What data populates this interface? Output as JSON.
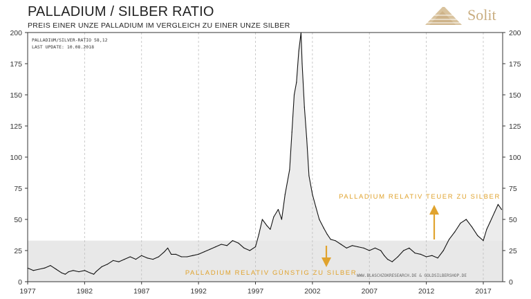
{
  "header": {
    "title": "PALLADIUM / SILBER RATIO",
    "subtitle": "PREIS EINER UNZE PALLADIUM IM VERGLEICH ZU EINER UNZE SILBER",
    "logo_text": "Solit"
  },
  "info": {
    "ratio_line": "PALLADIUM/SILVER-RATIO 58,12",
    "update_line": "LAST UPDATE: 10.08.2018",
    "source": "WWW.BLASCHZOKRESEARCH.DE  &  GOLDSILBERSHOP.DE"
  },
  "annotations": {
    "expensive": "PALLADIUM RELATIV TEUER ZU SILBER",
    "cheap": "PALLADIUM RELATIV GÜNSTIG ZU SILBER"
  },
  "colors": {
    "accent": "#e0a32e",
    "band": "#e8e8e8",
    "line": "#111111"
  },
  "chart_data": {
    "type": "line",
    "title": "PALLADIUM / SILBER RATIO",
    "subtitle": "PREIS EINER UNZE PALLADIUM IM VERGLEICH ZU EINER UNZE SILBER",
    "xlabel": "",
    "ylabel": "",
    "xlim": [
      1977,
      2018.7
    ],
    "ylim": [
      0,
      200
    ],
    "x_ticks": [
      "1977",
      "1982",
      "1987",
      "1992",
      "1997",
      "2002",
      "2007",
      "2012",
      "2017"
    ],
    "y_ticks": [
      "0",
      "25",
      "50",
      "75",
      "100",
      "125",
      "150",
      "175",
      "200"
    ],
    "grid": "vertical dashed",
    "band": {
      "y_max": 33,
      "x_from": 1977,
      "x_to": 2018.7
    },
    "series": [
      {
        "x": [
          1977.0,
          1977.5,
          1978.0,
          1978.5,
          1979.0,
          1979.5,
          1980.0,
          1980.3,
          1980.6,
          1981.0,
          1981.5,
          1982.0,
          1982.5,
          1982.8,
          1983.0,
          1983.5,
          1984.0,
          1984.5,
          1985.0,
          1985.5,
          1986.0,
          1986.5,
          1987.0,
          1987.5,
          1988.0,
          1988.5,
          1989.0,
          1989.3,
          1989.6,
          1990.0,
          1990.5,
          1991.0,
          1991.5,
          1992.0,
          1992.5,
          1993.0,
          1993.5,
          1994.0,
          1994.5,
          1995.0,
          1995.5,
          1996.0,
          1996.5,
          1997.0,
          1997.3,
          1997.6,
          1998.0,
          1998.3,
          1998.6,
          1999.0,
          1999.3,
          1999.6,
          2000.0,
          2000.2,
          2000.4,
          2000.6,
          2000.8,
          2001.0,
          2001.1,
          2001.3,
          2001.5,
          2001.7,
          2002.0,
          2002.3,
          2002.6,
          2003.0,
          2003.3,
          2003.6,
          2004.0,
          2004.5,
          2005.0,
          2005.5,
          2006.0,
          2006.5,
          2007.0,
          2007.5,
          2008.0,
          2008.3,
          2008.6,
          2009.0,
          2009.5,
          2010.0,
          2010.5,
          2011.0,
          2011.5,
          2012.0,
          2012.5,
          2013.0,
          2013.5,
          2014.0,
          2014.5,
          2015.0,
          2015.5,
          2016.0,
          2016.5,
          2017.0,
          2017.3,
          2017.6,
          2018.0,
          2018.3,
          2018.6
        ],
        "values": [
          11,
          9,
          10,
          11,
          13,
          10,
          7,
          6,
          8,
          9,
          8,
          9,
          7,
          6,
          8,
          12,
          14,
          17,
          16,
          18,
          20,
          18,
          21,
          19,
          18,
          20,
          24,
          27,
          22,
          22,
          20,
          20,
          21,
          22,
          24,
          26,
          28,
          30,
          29,
          33,
          31,
          27,
          25,
          28,
          38,
          50,
          45,
          42,
          52,
          58,
          50,
          70,
          90,
          120,
          150,
          160,
          185,
          200,
          175,
          140,
          115,
          85,
          70,
          60,
          50,
          43,
          38,
          34,
          33,
          30,
          27,
          29,
          28,
          27,
          25,
          27,
          25,
          21,
          18,
          16,
          20,
          25,
          27,
          23,
          22,
          20,
          21,
          19,
          25,
          34,
          40,
          47,
          50,
          44,
          37,
          33,
          42,
          48,
          56,
          62,
          58
        ]
      }
    ]
  }
}
